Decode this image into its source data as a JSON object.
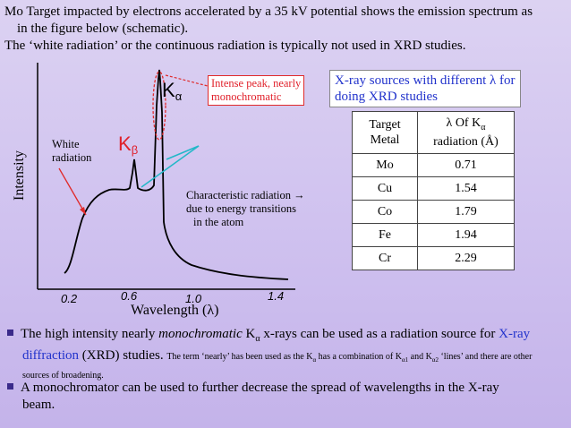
{
  "intro": {
    "line1": "Mo Target impacted by electrons accelerated by a 35 kV potential shows the emission spectrum as",
    "line2": "in the figure below (schematic).",
    "line3": "The ‘white radiation’ or the continuous radiation is typically not used in XRD studies."
  },
  "diagram": {
    "ylabel": "Intensity",
    "xlabel": "Wavelength (λ)",
    "x_ticks": [
      "0.2",
      "0.6",
      "1.0",
      "1.4"
    ],
    "white_label": [
      "White",
      "radiation"
    ],
    "kalpha": {
      "base": "K",
      "sub": "α"
    },
    "kbeta": {
      "base": "K",
      "sub": "β"
    },
    "peak_note": [
      "Intense peak, nearly",
      "monochromatic"
    ],
    "char_note": [
      "Characteristic radiation →",
      "due to energy transitions",
      "in the atom"
    ]
  },
  "xray_box": {
    "line1": "X-ray sources with different λ for",
    "line2": "doing XRD studies"
  },
  "table": {
    "headers": [
      [
        "Target",
        "Metal"
      ],
      [
        "λ Of K",
        "α",
        "radiation (Å)"
      ]
    ],
    "rows": [
      [
        "Mo",
        "0.71"
      ],
      [
        "Cu",
        "1.54"
      ],
      [
        "Co",
        "1.79"
      ],
      [
        "Fe",
        "1.94"
      ],
      [
        "Cr",
        "2.29"
      ]
    ]
  },
  "bullets": {
    "b1": {
      "t1": "The high intensity nearly",
      "t2": "monochromatic",
      "t3": "K",
      "t3sub": "α",
      "t4": "x-rays can be used as a radiation source for",
      "t5": "X-ray",
      "t6": "diffraction",
      "t7": "(XRD) studies.",
      "s1": "The term ‘nearly’ has been used as the K",
      "s1sub": "α",
      "s2": "has a combination of K",
      "s2sub": "α1",
      "s3": "and K",
      "s3sub": "α2",
      "s4": "‘lines’ and there are other",
      "s5": "sources of broadening."
    },
    "b2": {
      "line1": "A monochromator can be used to further decrease the spread of wavelengths in the X-ray",
      "line2": "beam."
    }
  },
  "colors": {
    "accent_red": "#e0202a",
    "accent_blue": "#2233cc",
    "bullet": "#3a2a8a"
  }
}
